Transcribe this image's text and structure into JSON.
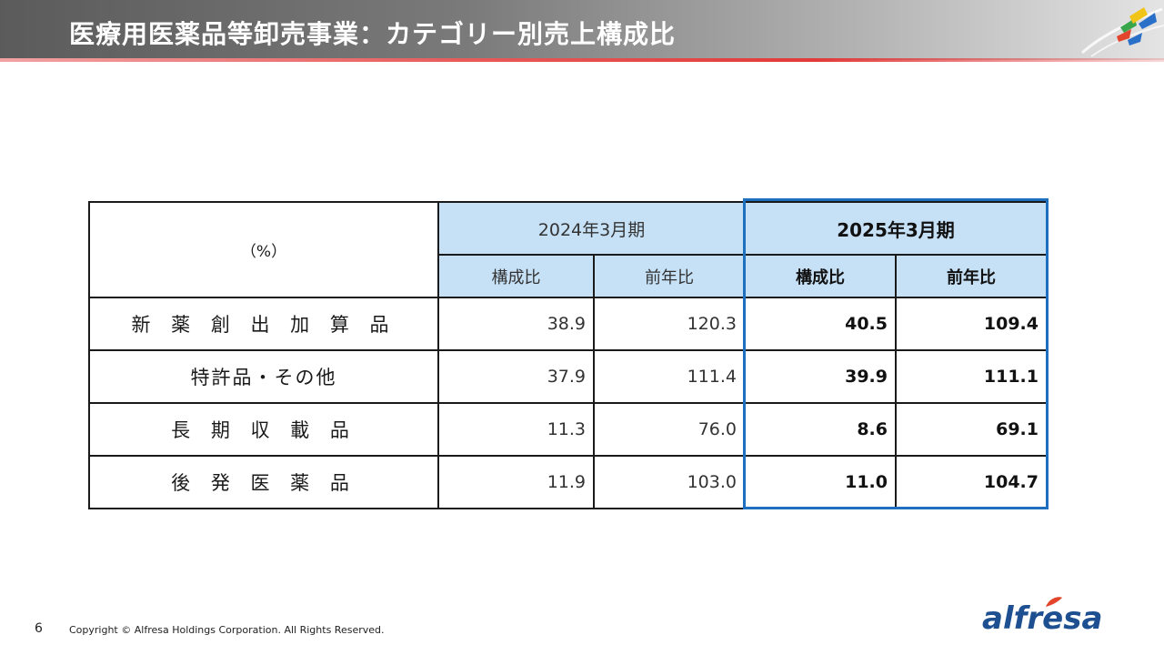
{
  "header": {
    "title": "医療用医薬品等卸売事業：カテゴリー別売上構成比"
  },
  "table": {
    "unit": "（%）",
    "period_prev": "2024年3月期",
    "period_curr": "2025年3月期",
    "col_share": "構成比",
    "col_yoy": "前年比",
    "rows": [
      {
        "label": "新 薬 創 出 加 算 品",
        "prev_share": "38.9",
        "prev_yoy": "120.3",
        "curr_share": "40.5",
        "curr_yoy": "109.4"
      },
      {
        "label": "特許品・その他",
        "prev_share": "37.9",
        "prev_yoy": "111.4",
        "curr_share": "39.9",
        "curr_yoy": "111.1"
      },
      {
        "label": "長 期 収 載 品",
        "prev_share": "11.3",
        "prev_yoy": "76.0",
        "curr_share": "8.6",
        "curr_yoy": "69.1"
      },
      {
        "label": "後 発 医 薬 品",
        "prev_share": "11.9",
        "prev_yoy": "103.0",
        "curr_share": "11.0",
        "curr_yoy": "104.7"
      }
    ]
  },
  "footer": {
    "page_number": "6",
    "copyright": "Copyright © Alfresa Holdings Corporation. All Rights Reserved.",
    "brand": "alfresa"
  },
  "colors": {
    "header_accent": "#e23a3a",
    "table_header_bg": "#c6e0f6",
    "highlight_border": "#1f6fbf",
    "brand_blue": "#1d4f91"
  }
}
